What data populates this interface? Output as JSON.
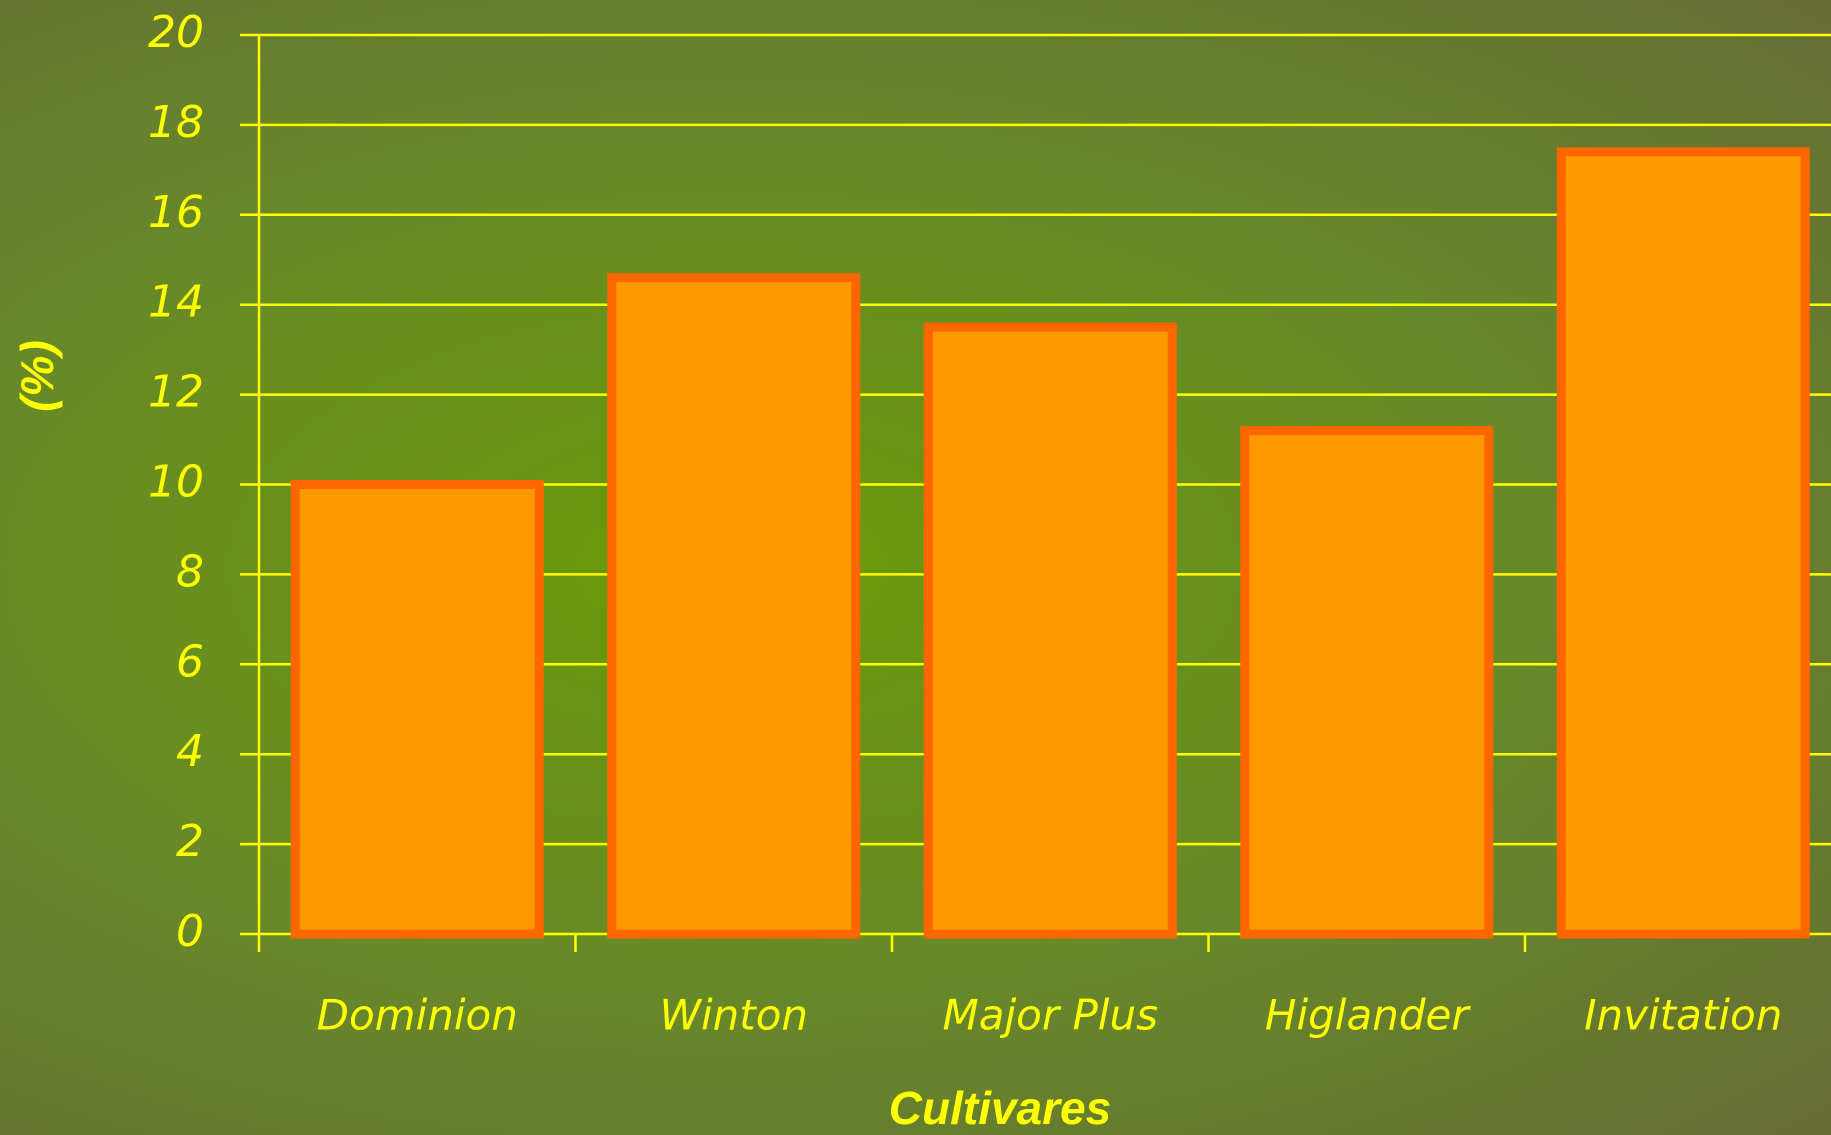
{
  "chart_data": {
    "type": "bar",
    "x_label": "Cultivares",
    "y_label": "(%)",
    "categories": [
      "Dominion",
      "Winton",
      "Major Plus",
      "Higlander",
      "Invitation"
    ],
    "values": [
      10,
      14.6,
      13.5,
      11.2,
      17.4
    ],
    "color": "#ff9900",
    "edge_color": "#ff6600",
    "ylim": [
      0,
      20
    ],
    "yticks": [
      0,
      2,
      4,
      6,
      8,
      10,
      12,
      14,
      16,
      18,
      20
    ],
    "grid": true
  }
}
